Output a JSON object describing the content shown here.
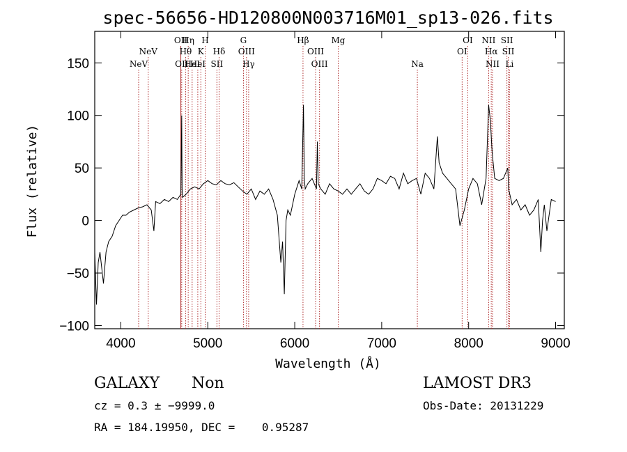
{
  "chart_data": {
    "type": "line",
    "title": "spec-56656-HD120800N003716M01_sp13-026.fits",
    "xlabel": "Wavelength (Å)",
    "ylabel": "Flux (relative)",
    "xlim": [
      3700,
      9100
    ],
    "ylim": [
      -103,
      180
    ],
    "xticks": [
      4000,
      5000,
      6000,
      7000,
      8000,
      9000
    ],
    "yticks": [
      -100,
      -50,
      0,
      50,
      100,
      150
    ],
    "xtick_labels": [
      "4000",
      "5000",
      "6000",
      "7000",
      "8000",
      "9000"
    ],
    "ytick_labels": [
      "−100",
      "−50",
      "0",
      "50",
      "100",
      "150"
    ],
    "line_color": "#000000",
    "marker_color": "#b03030",
    "series": [
      {
        "name": "spectrum",
        "x": [
          3700,
          3720,
          3740,
          3760,
          3780,
          3800,
          3830,
          3860,
          3900,
          3940,
          3980,
          4020,
          4060,
          4100,
          4150,
          4200,
          4250,
          4300,
          4350,
          4380,
          4400,
          4450,
          4500,
          4550,
          4600,
          4650,
          4690,
          4700,
          4705,
          4710,
          4750,
          4800,
          4850,
          4900,
          4950,
          5000,
          5050,
          5100,
          5150,
          5200,
          5250,
          5300,
          5350,
          5400,
          5450,
          5500,
          5550,
          5600,
          5650,
          5700,
          5750,
          5800,
          5840,
          5860,
          5880,
          5900,
          5920,
          5950,
          6000,
          6050,
          6080,
          6100,
          6110,
          6120,
          6150,
          6200,
          6250,
          6260,
          6270,
          6300,
          6350,
          6400,
          6450,
          6500,
          6550,
          6600,
          6650,
          6700,
          6750,
          6800,
          6850,
          6900,
          6950,
          7000,
          7050,
          7100,
          7150,
          7200,
          7250,
          7300,
          7350,
          7400,
          7450,
          7500,
          7550,
          7600,
          7640,
          7660,
          7700,
          7750,
          7800,
          7850,
          7900,
          7950,
          8000,
          8050,
          8100,
          8150,
          8200,
          8230,
          8250,
          8270,
          8300,
          8350,
          8400,
          8450,
          8460,
          8500,
          8550,
          8600,
          8650,
          8700,
          8750,
          8800,
          8830,
          8850,
          8870,
          8900,
          8950,
          9000
        ],
        "y": [
          -30,
          -80,
          -40,
          -30,
          -45,
          -60,
          -30,
          -20,
          -15,
          -5,
          0,
          5,
          5,
          8,
          10,
          12,
          13,
          15,
          10,
          -10,
          18,
          16,
          20,
          18,
          22,
          20,
          25,
          100,
          30,
          22,
          25,
          30,
          32,
          30,
          35,
          38,
          35,
          34,
          38,
          35,
          34,
          36,
          32,
          28,
          25,
          30,
          20,
          28,
          25,
          30,
          20,
          5,
          -40,
          -20,
          -70,
          0,
          10,
          5,
          25,
          38,
          30,
          110,
          40,
          30,
          35,
          40,
          30,
          75,
          35,
          30,
          25,
          35,
          30,
          28,
          25,
          30,
          25,
          30,
          35,
          28,
          25,
          30,
          40,
          38,
          35,
          42,
          40,
          30,
          45,
          35,
          38,
          40,
          25,
          45,
          40,
          30,
          80,
          55,
          45,
          40,
          35,
          30,
          -5,
          10,
          30,
          40,
          35,
          15,
          40,
          110,
          95,
          65,
          40,
          38,
          40,
          50,
          30,
          15,
          20,
          10,
          15,
          5,
          10,
          20,
          -30,
          0,
          15,
          -10,
          20,
          18
        ]
      }
    ],
    "line_markers": [
      {
        "label": "NeV",
        "wl": 4205,
        "row": 3,
        "style": "dotted"
      },
      {
        "label": "NeV",
        "wl": 4315,
        "row": 2,
        "style": "dotted"
      },
      {
        "label": "OII",
        "wl": 4690,
        "row": 1,
        "style": "solid"
      },
      {
        "label": "OII",
        "wl": 4700,
        "row": 3,
        "style": "dotted"
      },
      {
        "label": "Hη",
        "wl": 4775,
        "row": 1,
        "style": "dotted"
      },
      {
        "label": "Hθ",
        "wl": 4745,
        "row": 2,
        "style": "dotted"
      },
      {
        "label": "HeI",
        "wl": 4820,
        "row": 3,
        "style": "dotted"
      },
      {
        "label": "H",
        "wl": 4970,
        "row": 1,
        "style": "dotted"
      },
      {
        "label": "K",
        "wl": 4920,
        "row": 2,
        "style": "dotted"
      },
      {
        "label": "HeI",
        "wl": 4885,
        "row": 3,
        "style": "dotted"
      },
      {
        "label": "Hδ",
        "wl": 5130,
        "row": 2,
        "style": "dotted"
      },
      {
        "label": "SII",
        "wl": 5105,
        "row": 3,
        "style": "dotted"
      },
      {
        "label": "G",
        "wl": 5410,
        "row": 1,
        "style": "dotted"
      },
      {
        "label": "OIII",
        "wl": 5445,
        "row": 2,
        "style": "dotted"
      },
      {
        "label": "Hγ",
        "wl": 5470,
        "row": 3,
        "style": "dotted"
      },
      {
        "label": "Hβ",
        "wl": 6095,
        "row": 1,
        "style": "dotted"
      },
      {
        "label": "OIII",
        "wl": 6240,
        "row": 2,
        "style": "dotted"
      },
      {
        "label": "OIII",
        "wl": 6285,
        "row": 3,
        "style": "dotted"
      },
      {
        "label": "Mg",
        "wl": 6500,
        "row": 1,
        "style": "dotted"
      },
      {
        "label": "Na",
        "wl": 7410,
        "row": 3,
        "style": "dotted"
      },
      {
        "label": "OI",
        "wl": 7990,
        "row": 1,
        "style": "dotted"
      },
      {
        "label": "OI",
        "wl": 7925,
        "row": 2,
        "style": "dotted"
      },
      {
        "label": "NII",
        "wl": 8230,
        "row": 1,
        "style": "dotted"
      },
      {
        "label": "Hα",
        "wl": 8260,
        "row": 2,
        "style": "dotted"
      },
      {
        "label": "NII",
        "wl": 8275,
        "row": 3,
        "style": "dotted"
      },
      {
        "label": "SII",
        "wl": 8440,
        "row": 1,
        "style": "dotted"
      },
      {
        "label": "SII",
        "wl": 8455,
        "row": 2,
        "style": "dotted"
      },
      {
        "label": "Li",
        "wl": 8470,
        "row": 3,
        "style": "dotted"
      }
    ]
  },
  "info": {
    "class": "GALAXY",
    "subclass": "Non",
    "survey": "LAMOST DR3",
    "cz": "cz = 0.3 ± −9999.0",
    "obs_date": "Obs-Date: 20131229",
    "coords": "RA = 184.19950, DEC =    0.95287"
  }
}
